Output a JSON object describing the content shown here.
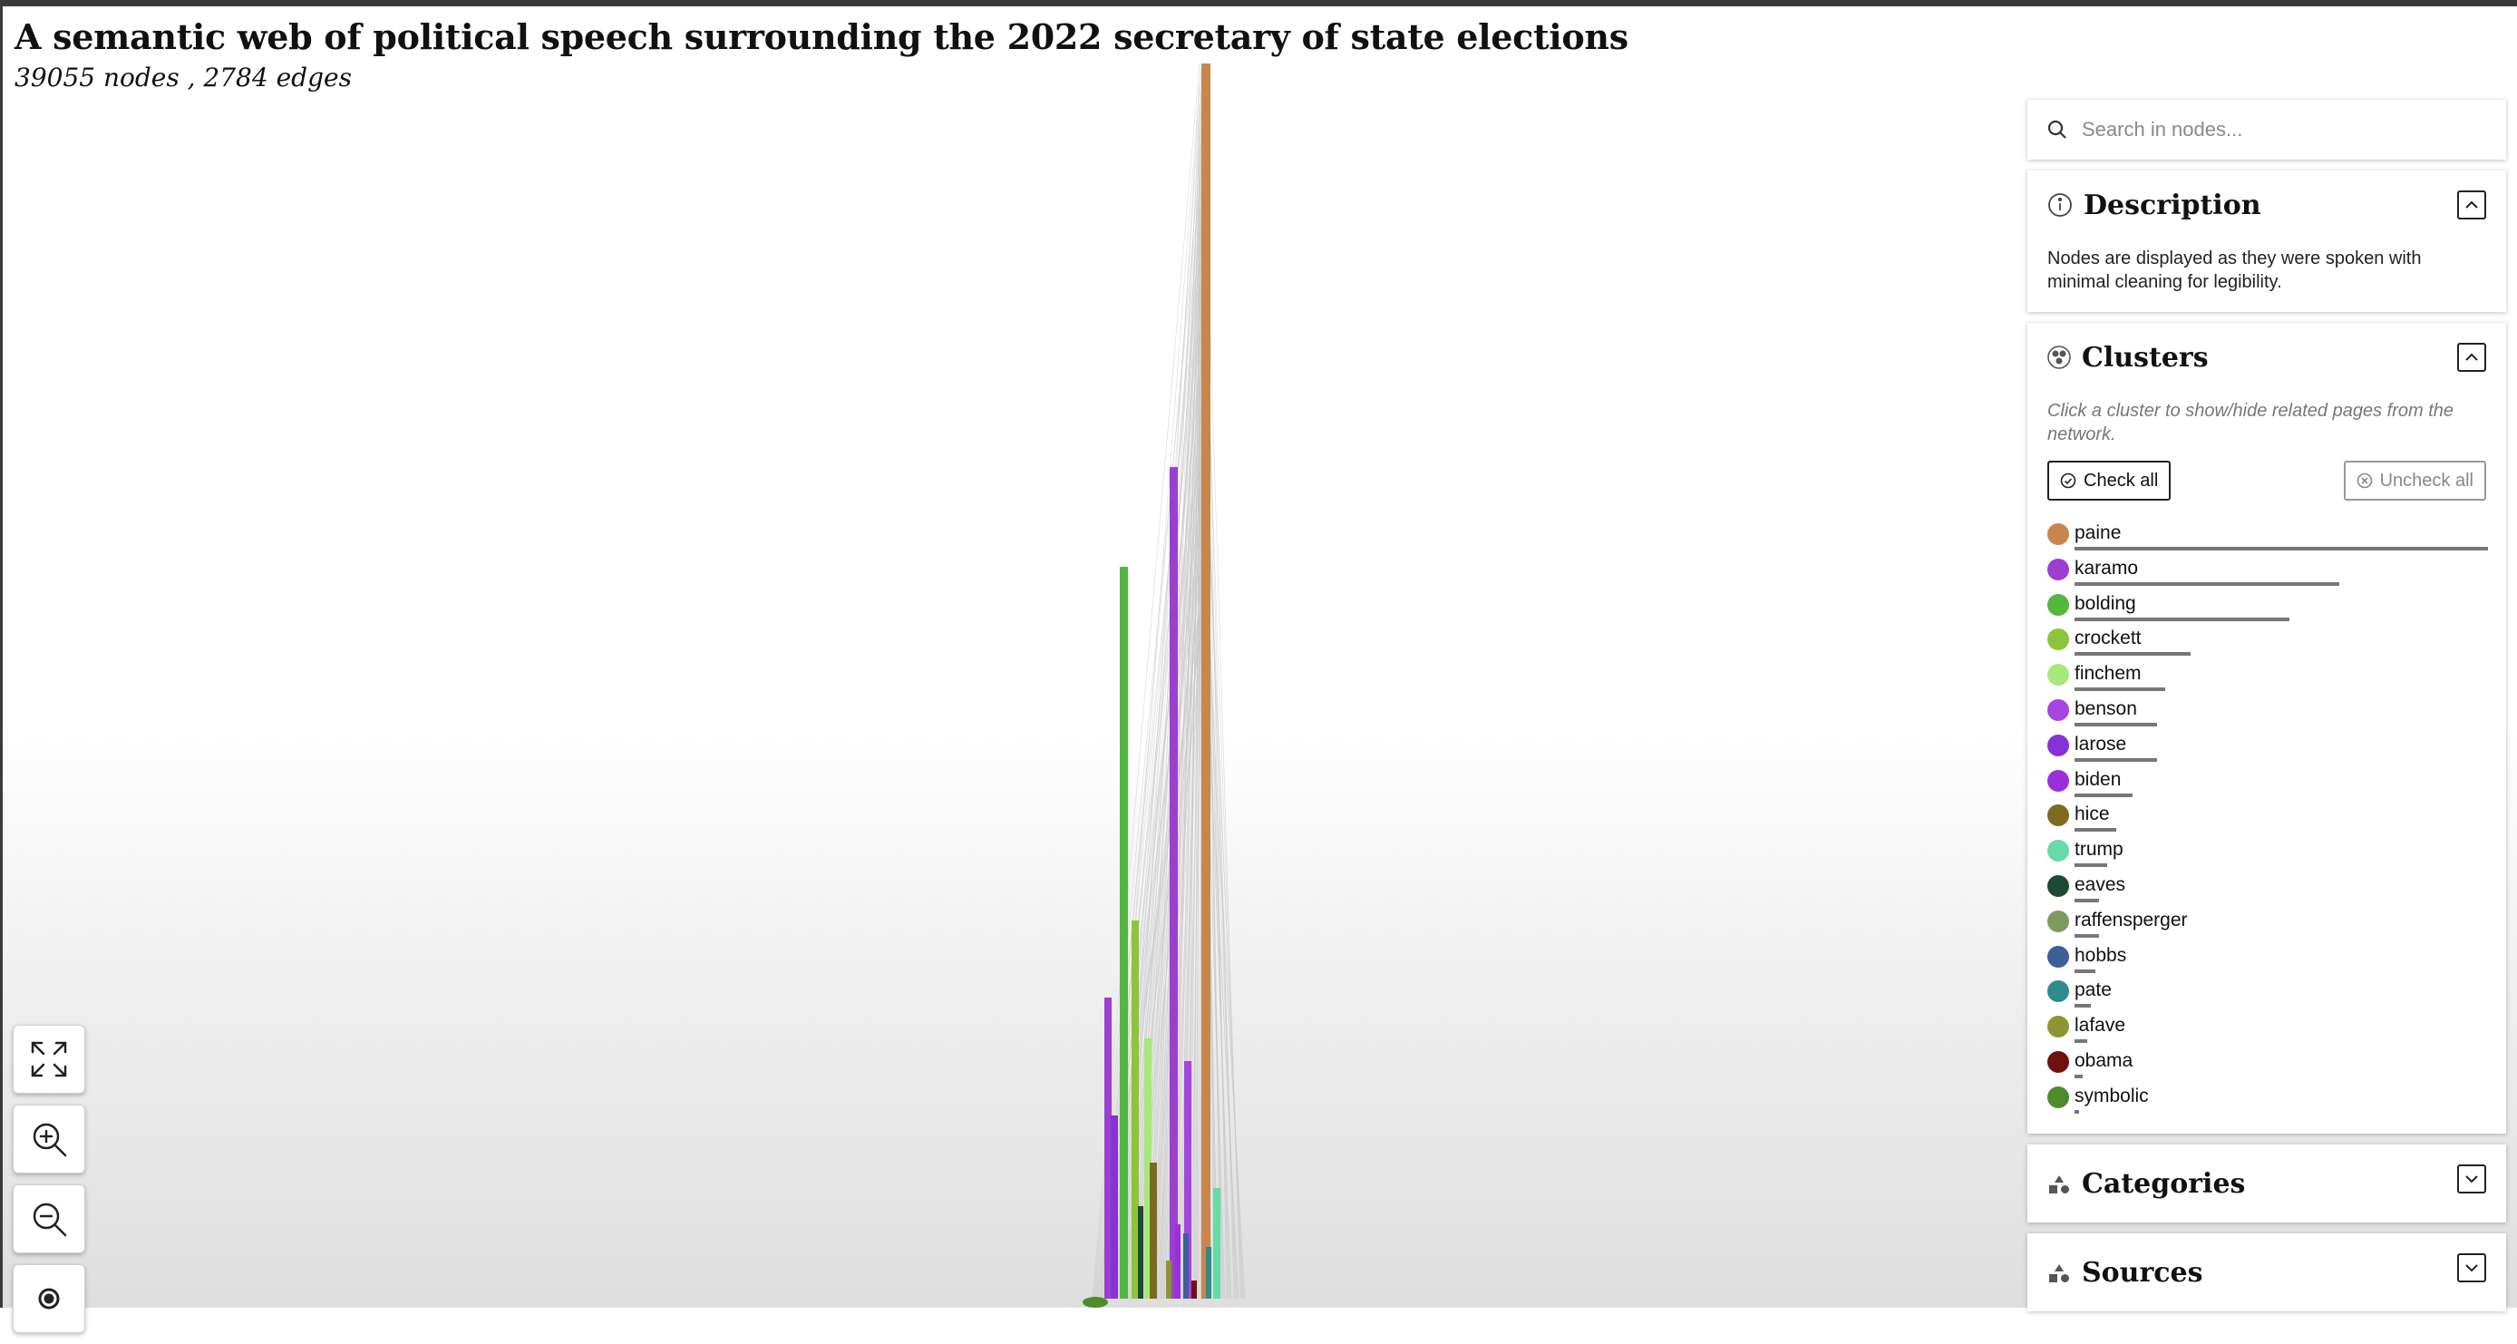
{
  "header": {
    "title": "A semantic web of political speech surrounding the 2022 secretary of state elections",
    "stats": "39055 nodes , 2784 edges"
  },
  "search": {
    "placeholder": "Search in nodes..."
  },
  "description": {
    "title": "Description",
    "text": "Nodes are displayed as they were spoken with minimal cleaning for legibility."
  },
  "clusters": {
    "title": "Clusters",
    "hint": "Click a cluster to show/hide related pages from the network.",
    "check_all": "Check all",
    "uncheck_all": "Uncheck all",
    "items": [
      {
        "label": "paine",
        "color": "#c8864e",
        "share": 1.0
      },
      {
        "label": "karamo",
        "color": "#9b3fd0",
        "share": 0.64
      },
      {
        "label": "bolding",
        "color": "#52b840",
        "share": 0.52
      },
      {
        "label": "crockett",
        "color": "#8ec43a",
        "share": 0.28
      },
      {
        "label": "finchem",
        "color": "#a7e87a",
        "share": 0.22
      },
      {
        "label": "benson",
        "color": "#a544e0",
        "share": 0.2
      },
      {
        "label": "larose",
        "color": "#8532d6",
        "share": 0.2
      },
      {
        "label": "biden",
        "color": "#9a30d8",
        "share": 0.14
      },
      {
        "label": "hice",
        "color": "#7c6b1e",
        "share": 0.1
      },
      {
        "label": "trump",
        "color": "#66dba8",
        "share": 0.08
      },
      {
        "label": "eaves",
        "color": "#1d4a33",
        "share": 0.06
      },
      {
        "label": "raffensperger",
        "color": "#7f9a5e",
        "share": 0.06
      },
      {
        "label": "hobbs",
        "color": "#3e5f97",
        "share": 0.05
      },
      {
        "label": "pate",
        "color": "#2f8c8c",
        "share": 0.04
      },
      {
        "label": "lafave",
        "color": "#8d9531",
        "share": 0.03
      },
      {
        "label": "obama",
        "color": "#6e1111",
        "share": 0.02
      },
      {
        "label": "symbolic",
        "color": "#4f8a2b",
        "share": 0.01
      }
    ]
  },
  "categories": {
    "title": "Categories"
  },
  "sources": {
    "title": "Sources"
  },
  "controls": {
    "icons": [
      "fullscreen-icon",
      "zoom-in-icon",
      "zoom-out-icon",
      "center-view-icon"
    ]
  }
}
